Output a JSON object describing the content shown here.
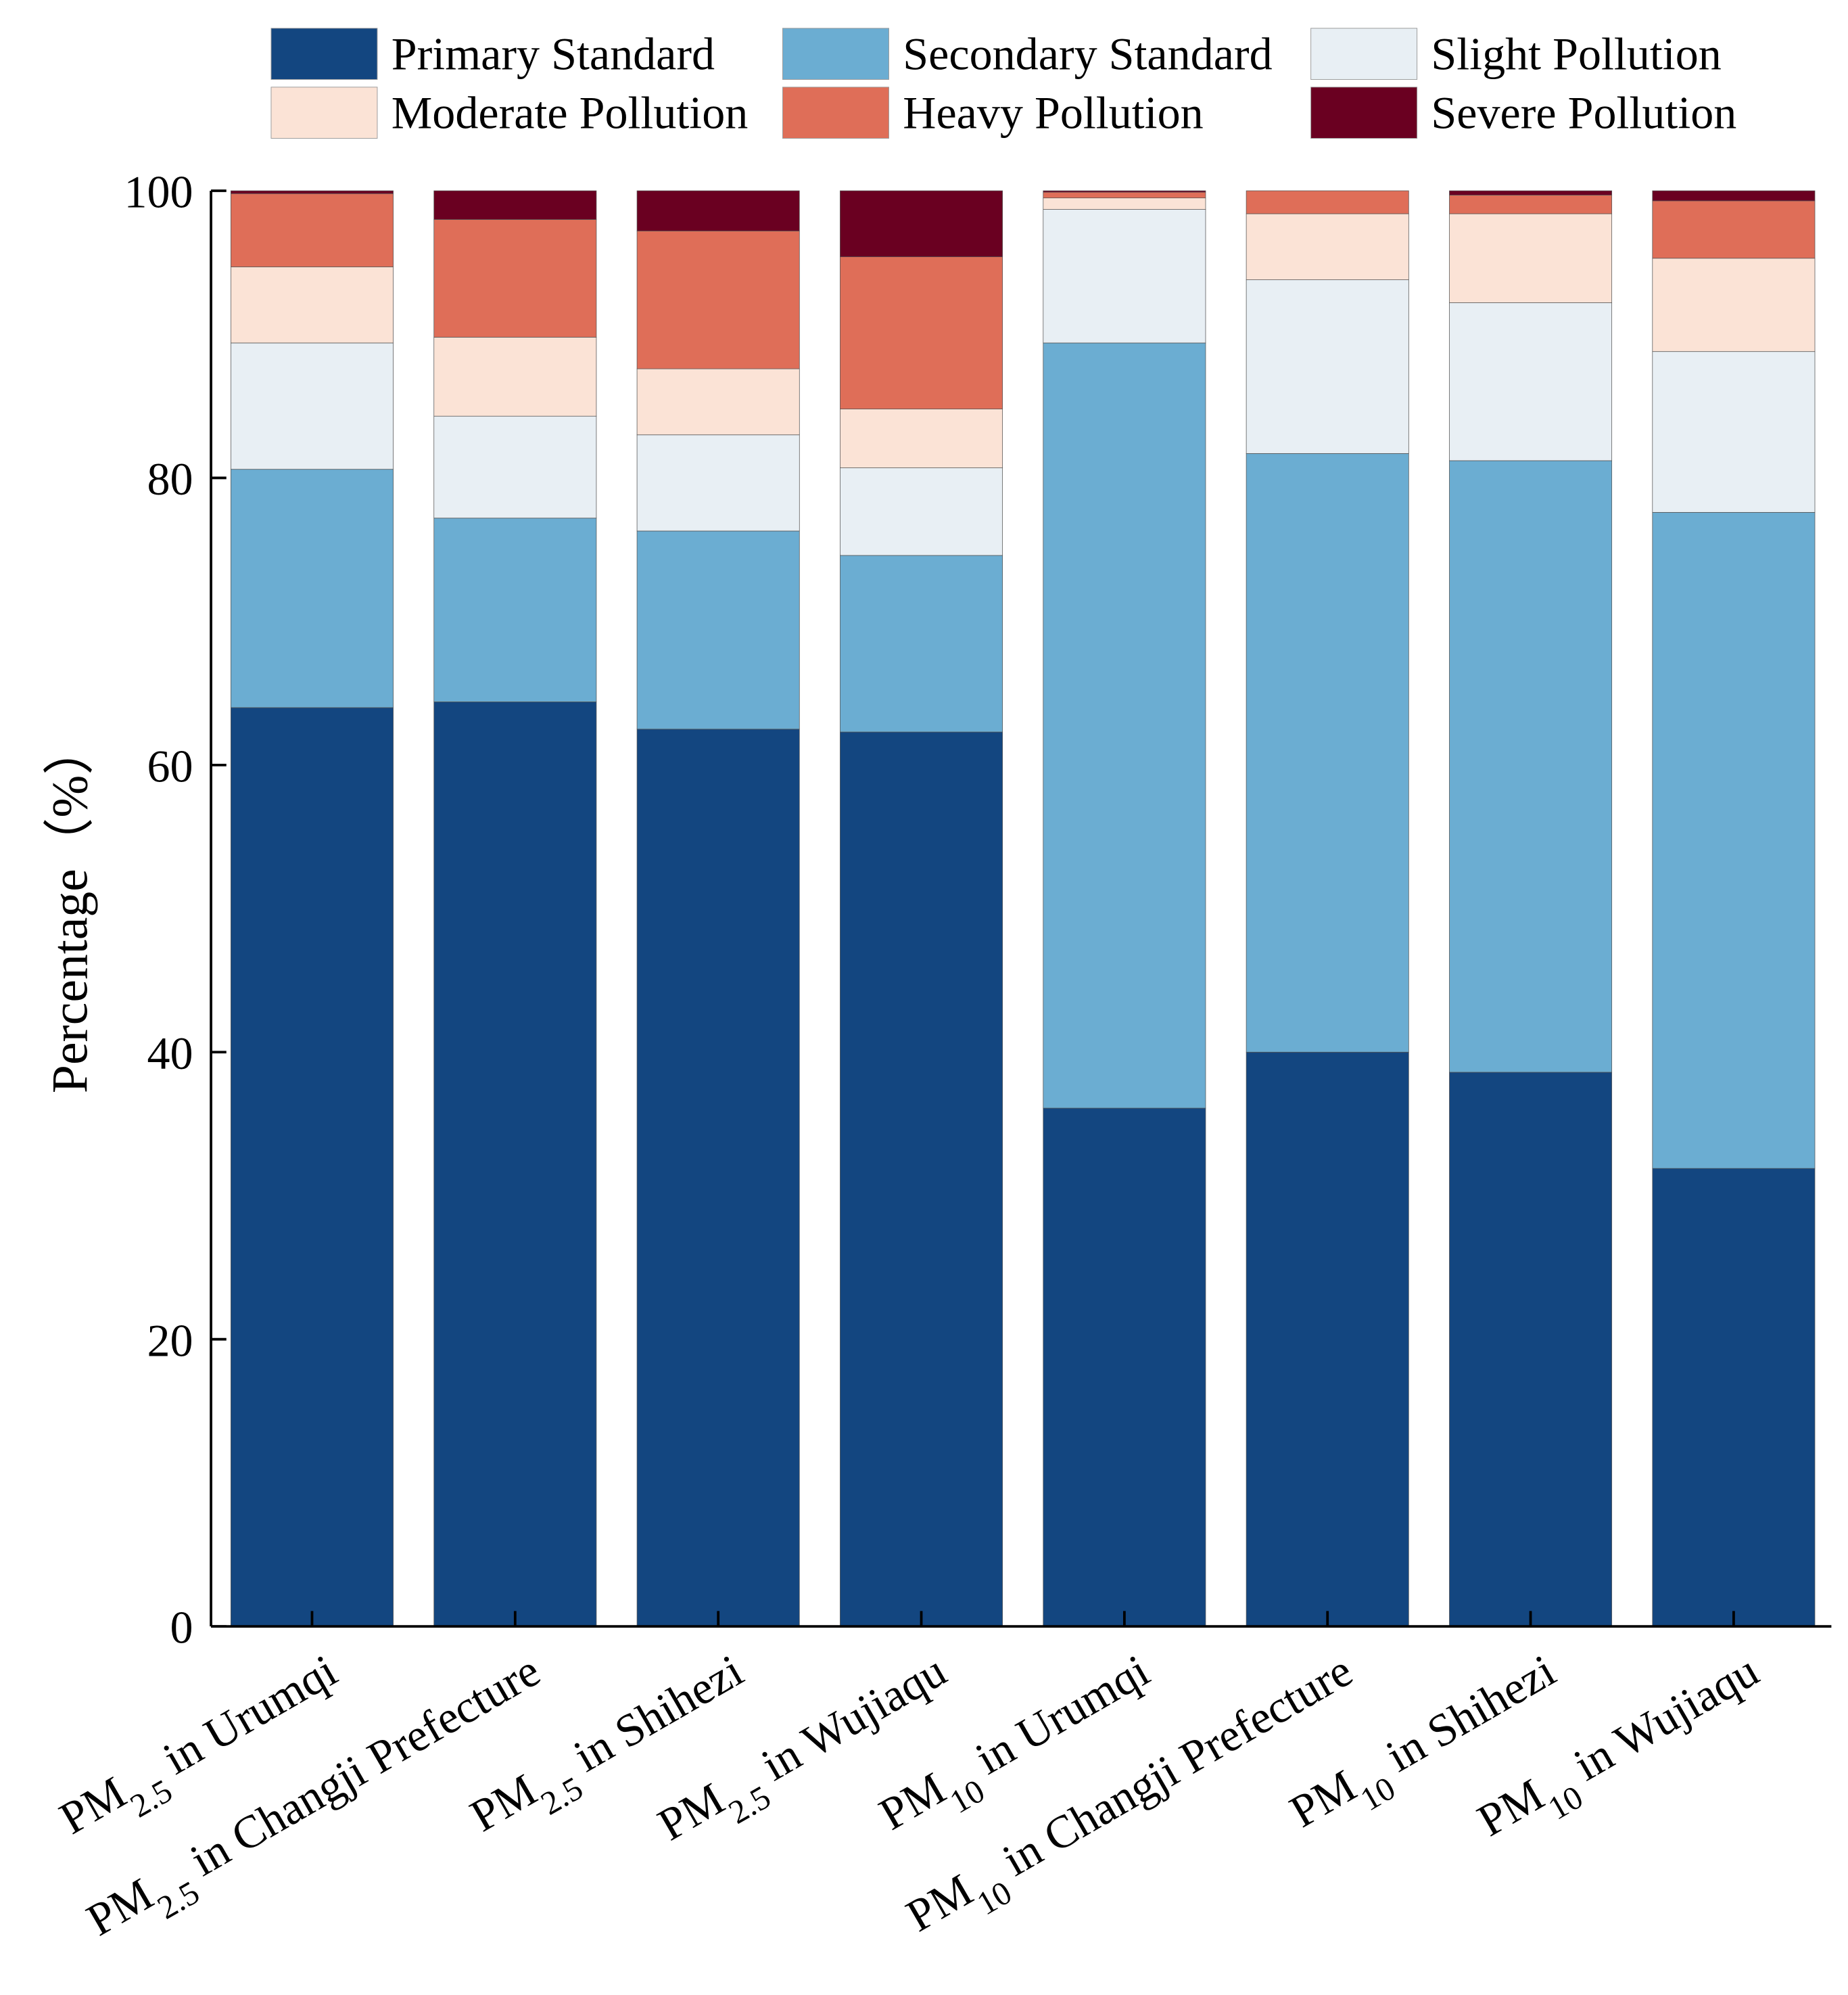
{
  "chart_data": {
    "type": "bar",
    "stacked": true,
    "title": "",
    "xlabel": "",
    "ylabel": "Percentage（%）",
    "ylim": [
      0,
      100
    ],
    "yticks": [
      0,
      20,
      40,
      60,
      80,
      100
    ],
    "legend_placement": "top",
    "categories": [
      {
        "prefix": "PM",
        "sub": "2.5",
        "suffix": " in Urumqi"
      },
      {
        "prefix": "PM",
        "sub": "2.5",
        "suffix": " in Changji Prefecture"
      },
      {
        "prefix": "PM",
        "sub": "2.5",
        "suffix": " in Shihezi"
      },
      {
        "prefix": "PM",
        "sub": "2.5",
        "suffix": " in Wujiaqu"
      },
      {
        "prefix": "PM",
        "sub": "10",
        "suffix": " in Urumqi"
      },
      {
        "prefix": "PM",
        "sub": "10",
        "suffix": " in Changji Prefecture"
      },
      {
        "prefix": "PM",
        "sub": "10",
        "suffix": " in Shihezi"
      },
      {
        "prefix": "PM",
        "sub": "10",
        "suffix": " in Wujiaqu"
      }
    ],
    "series": [
      {
        "name": "Primary Standard",
        "color": "#134680",
        "values": [
          64.0,
          64.4,
          62.5,
          62.3,
          36.1,
          40.0,
          38.6,
          31.9
        ]
      },
      {
        "name": "Secondary Standard",
        "color": "#6badd2",
        "values": [
          16.6,
          12.8,
          13.8,
          12.3,
          53.3,
          41.7,
          42.6,
          45.7
        ]
      },
      {
        "name": "Slight Pollution",
        "color": "#e8eff4",
        "values": [
          8.8,
          7.1,
          6.7,
          6.1,
          9.3,
          12.1,
          11.0,
          11.2
        ]
      },
      {
        "name": "Moderate Pollution",
        "color": "#fbe3d6",
        "values": [
          5.3,
          5.5,
          4.6,
          4.1,
          0.8,
          4.6,
          6.2,
          6.5
        ]
      },
      {
        "name": "Heavy Pollution",
        "color": "#df6e58",
        "values": [
          5.1,
          8.2,
          9.6,
          10.6,
          0.4,
          1.6,
          1.3,
          4.0
        ]
      },
      {
        "name": "Severe Pollution",
        "color": "#6a0021",
        "values": [
          0.2,
          2.0,
          2.8,
          4.6,
          0.1,
          0.0,
          0.3,
          0.7
        ]
      }
    ]
  }
}
